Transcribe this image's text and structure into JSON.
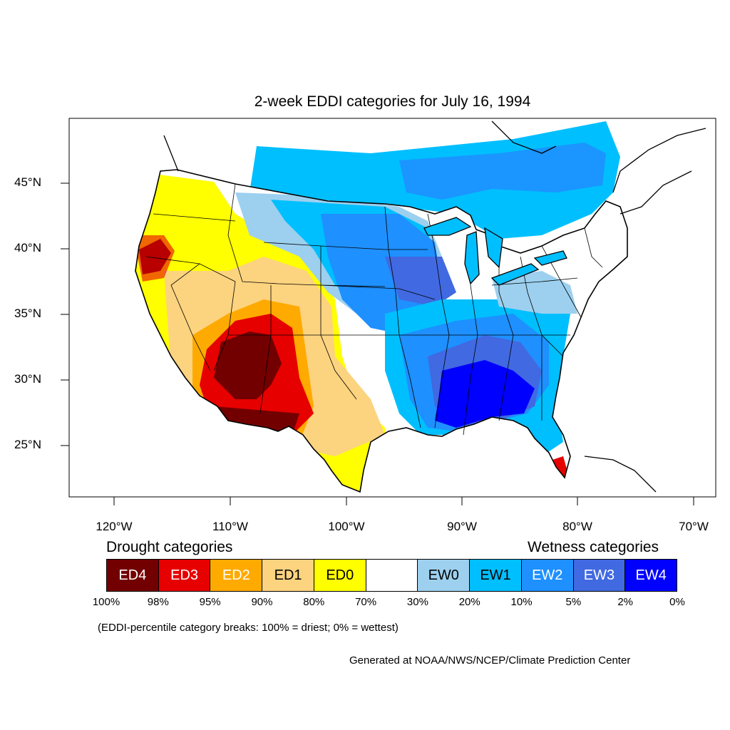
{
  "title": "2-week EDDI categories for July 16, 1994",
  "lat_labels": [
    "45°N",
    "40°N",
    "35°N",
    "30°N",
    "25°N"
  ],
  "lon_labels": [
    "120°W",
    "110°W",
    "100°W",
    "90°W",
    "80°W",
    "70°W"
  ],
  "legend": {
    "drought_heading": "Drought categories",
    "wetness_heading": "Wetness categories",
    "categories": [
      {
        "label": "ED4",
        "color": "#730000",
        "text_color": "#ffffff"
      },
      {
        "label": "ED3",
        "color": "#e60000",
        "text_color": "#ffffff"
      },
      {
        "label": "ED2",
        "color": "#ffaa00",
        "text_color": "#ffffff"
      },
      {
        "label": "ED1",
        "color": "#fcd37f",
        "text_color": "#000000"
      },
      {
        "label": "ED0",
        "color": "#ffff00",
        "text_color": "#000000"
      },
      {
        "label": "",
        "color": "#ffffff",
        "text_color": "#000000"
      },
      {
        "label": "EW0",
        "color": "#9dd0ef",
        "text_color": "#000000"
      },
      {
        "label": "EW1",
        "color": "#00bfff",
        "text_color": "#000000"
      },
      {
        "label": "EW2",
        "color": "#1e90ff",
        "text_color": "#ffffff"
      },
      {
        "label": "EW3",
        "color": "#4169e1",
        "text_color": "#ffffff"
      },
      {
        "label": "EW4",
        "color": "#0000ff",
        "text_color": "#ffffff"
      }
    ],
    "breaks": [
      "100%",
      "98%",
      "95%",
      "90%",
      "80%",
      "70%",
      "30%",
      "20%",
      "10%",
      "5%",
      "2%",
      "0%"
    ]
  },
  "note": "(EDDI-percentile category breaks: 100% = driest; 0% = wettest)",
  "credit": "Generated at NOAA/NWS/NCEP/Climate Prediction Center"
}
